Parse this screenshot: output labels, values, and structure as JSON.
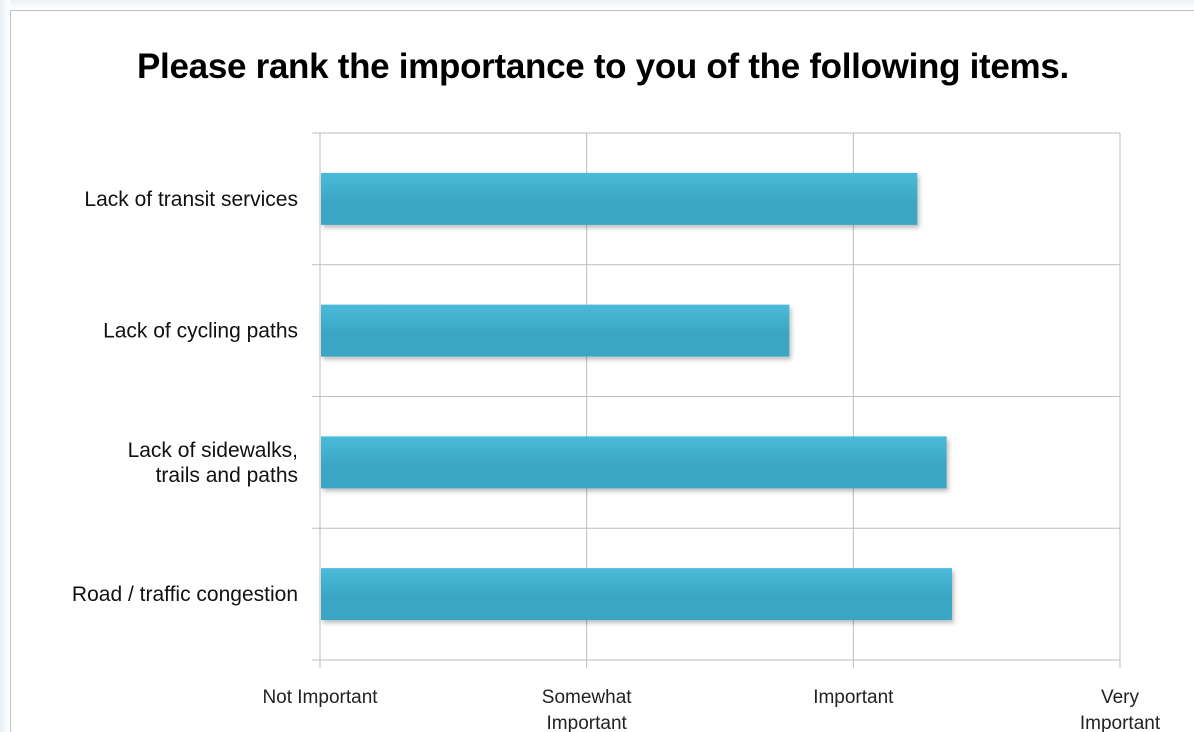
{
  "chart_data": {
    "type": "bar",
    "orientation": "horizontal",
    "title": "Please rank the importance to you of the following items.",
    "categories": [
      [
        "Lack of transit services"
      ],
      [
        "Lack of cycling paths"
      ],
      [
        "Lack of sidewalks,",
        "trails and paths"
      ],
      [
        "Road / traffic congestion"
      ]
    ],
    "values": [
      2.24,
      1.76,
      2.35,
      2.37
    ],
    "xlim": [
      0,
      3
    ],
    "x_ticks": [
      [
        "Not Important"
      ],
      [
        "Somewhat",
        "Important"
      ],
      [
        "Important"
      ],
      [
        "Very",
        "Important"
      ]
    ],
    "grid": true,
    "bar_color": "#3aa6c4",
    "bar_color_light": "#4cbad9",
    "gridline_color": "#bdbdbd"
  }
}
